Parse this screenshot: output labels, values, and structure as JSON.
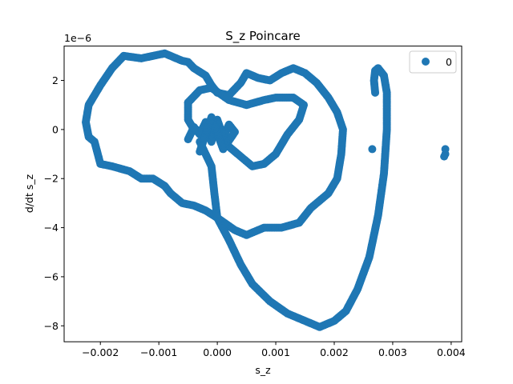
{
  "chart_data": {
    "type": "scatter",
    "title": "S_z Poincare",
    "xlabel": "s_z",
    "ylabel": "d/dt s_z",
    "y_offset_label": "1e−6",
    "xlim": [
      -0.00262,
      0.00418
    ],
    "ylim": [
      -8.65,
      3.4
    ],
    "x_ticks": [
      -0.002,
      -0.001,
      0.0,
      0.001,
      0.002,
      0.003,
      0.004
    ],
    "x_tick_labels": [
      "−0.002",
      "−0.001",
      "0.000",
      "0.001",
      "0.002",
      "0.003",
      "0.004"
    ],
    "y_ticks": [
      -8,
      -6,
      -4,
      -2,
      0,
      2
    ],
    "y_tick_labels": [
      "−8",
      "−6",
      "−4",
      "−2",
      "0",
      "2"
    ],
    "grid": false,
    "legend_position": "top-right",
    "color": "#1f77b4",
    "series": [
      {
        "name": "0",
        "paths": [
          [
            [
              -0.0016,
              3.0
            ],
            [
              -0.0013,
              2.9
            ],
            [
              -0.0009,
              3.1
            ],
            [
              -0.0006,
              2.8
            ],
            [
              -0.0005,
              2.75
            ],
            [
              -0.0004,
              2.5
            ],
            [
              -0.0002,
              2.2
            ],
            [
              -0.0001,
              1.8
            ],
            [
              0.0,
              1.5
            ],
            [
              0.0002,
              1.4
            ],
            [
              0.0004,
              1.9
            ],
            [
              0.0005,
              2.3
            ],
            [
              0.0007,
              2.1
            ],
            [
              0.0009,
              2.0
            ],
            [
              0.0011,
              2.3
            ],
            [
              0.0013,
              2.5
            ],
            [
              0.0015,
              2.3
            ],
            [
              0.0017,
              1.9
            ],
            [
              0.0019,
              1.3
            ],
            [
              0.00205,
              0.7
            ],
            [
              0.00215,
              0.0
            ],
            [
              0.00212,
              -1.0
            ],
            [
              0.00205,
              -2.0
            ],
            [
              0.0019,
              -2.6
            ],
            [
              0.0016,
              -3.2
            ],
            [
              0.0014,
              -3.8
            ],
            [
              0.0011,
              -4.0
            ],
            [
              0.0008,
              -4.0
            ],
            [
              0.0005,
              -4.3
            ],
            [
              0.0003,
              -4.1
            ],
            [
              0.0,
              -3.6
            ],
            [
              -0.0002,
              -3.3
            ],
            [
              -0.0004,
              -3.1
            ],
            [
              -0.0006,
              -3.0
            ],
            [
              -0.0008,
              -2.6
            ],
            [
              -0.0009,
              -2.3
            ],
            [
              -0.0011,
              -2.0
            ],
            [
              -0.0013,
              -2.0
            ],
            [
              -0.0015,
              -1.7
            ],
            [
              -0.0018,
              -1.5
            ],
            [
              -0.002,
              -1.4
            ],
            [
              -0.0021,
              -0.5
            ],
            [
              -0.0022,
              -0.3
            ],
            [
              -0.00225,
              0.3
            ],
            [
              -0.0022,
              1.0
            ],
            [
              -0.002,
              1.8
            ],
            [
              -0.0018,
              2.5
            ],
            [
              -0.0016,
              3.0
            ]
          ],
          [
            [
              -0.0005,
              1.1
            ],
            [
              -0.0003,
              1.6
            ],
            [
              -0.0001,
              1.7
            ],
            [
              0.0002,
              1.2
            ],
            [
              0.0005,
              1.0
            ],
            [
              0.0008,
              1.2
            ],
            [
              0.001,
              1.3
            ],
            [
              0.0013,
              1.3
            ],
            [
              0.00148,
              1.0
            ],
            [
              0.0014,
              0.4
            ],
            [
              0.0012,
              -0.2
            ],
            [
              0.001,
              -1.0
            ],
            [
              0.0008,
              -1.4
            ],
            [
              0.0006,
              -1.5
            ],
            [
              0.0004,
              -1.1
            ],
            [
              0.0002,
              -0.7
            ],
            [
              0.0001,
              -0.3
            ],
            [
              -0.0002,
              -0.1
            ],
            [
              -0.0004,
              0.0
            ],
            [
              -0.0005,
              0.4
            ],
            [
              -0.0005,
              1.1
            ]
          ],
          [
            [
              -0.0003,
              -0.5
            ],
            [
              -0.0001,
              -1.5
            ],
            [
              -5e-05,
              -2.6
            ],
            [
              0.0,
              -3.6
            ],
            [
              0.0002,
              -4.5
            ],
            [
              0.0004,
              -5.5
            ],
            [
              0.0006,
              -6.3
            ],
            [
              0.0009,
              -7.0
            ],
            [
              0.0012,
              -7.5
            ],
            [
              0.0015,
              -7.8
            ],
            [
              0.00175,
              -8.05
            ],
            [
              0.002,
              -7.8
            ],
            [
              0.0022,
              -7.4
            ],
            [
              0.0024,
              -6.5
            ],
            [
              0.0026,
              -5.2
            ],
            [
              0.00275,
              -3.5
            ],
            [
              0.00285,
              -1.8
            ],
            [
              0.0029,
              0.0
            ],
            [
              0.0029,
              1.5
            ],
            [
              0.00285,
              2.2
            ],
            [
              0.00275,
              2.5
            ],
            [
              0.0027,
              2.4
            ],
            [
              0.00268,
              2.0
            ],
            [
              0.0027,
              1.5
            ]
          ],
          [
            [
              -0.0005,
              -0.4
            ],
            [
              -0.0004,
              0.1
            ],
            [
              -0.0003,
              -0.2
            ],
            [
              -0.0002,
              0.3
            ],
            [
              -0.0001,
              -0.5
            ],
            [
              0.0,
              0.4
            ],
            [
              0.0001,
              -0.3
            ],
            [
              0.0002,
              0.2
            ],
            [
              0.0003,
              -0.1
            ],
            [
              0.0001,
              -0.8
            ],
            [
              -0.0001,
              0.5
            ],
            [
              -0.0003,
              -0.9
            ]
          ]
        ],
        "points": [
          [
            0.00265,
            -0.8
          ],
          [
            0.0039,
            -0.8
          ],
          [
            0.0039,
            -1.0
          ],
          [
            0.00388,
            -1.1
          ]
        ]
      }
    ]
  }
}
